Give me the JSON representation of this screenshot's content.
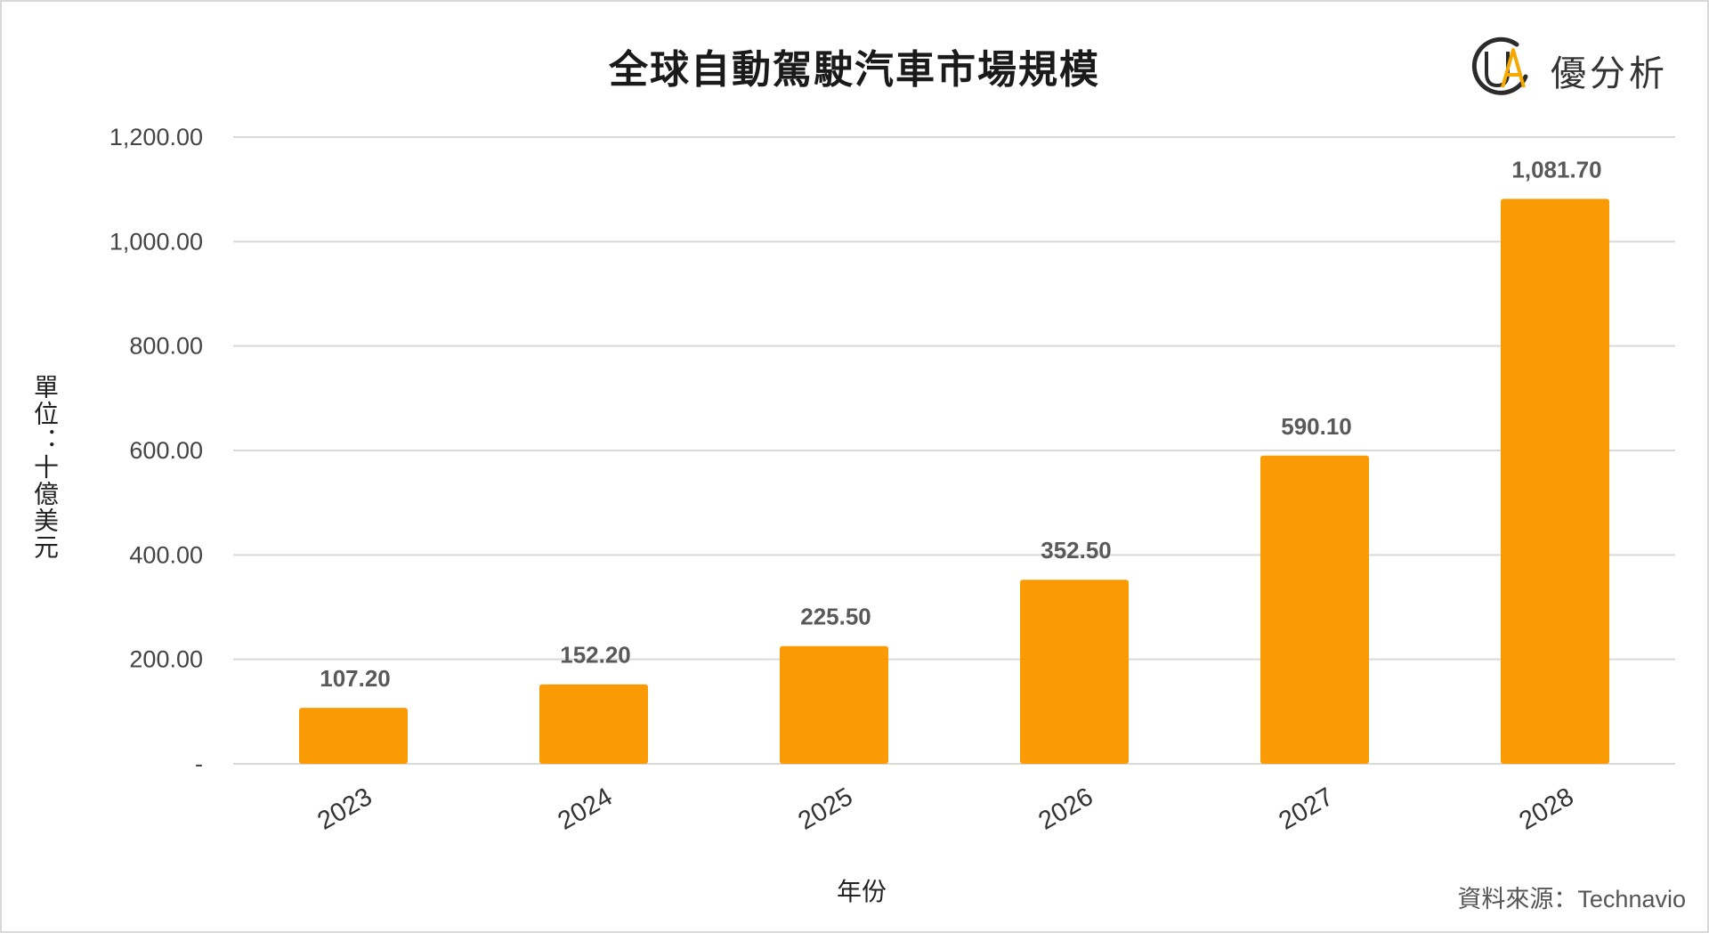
{
  "brand": {
    "logo_text": "UA",
    "name": "優分析"
  },
  "source_note": "資料來源：Technavio",
  "colors": {
    "bar": "#fa9a05",
    "grid": "#d9d9d9",
    "logo_dark": "#2b2b2b",
    "logo_accent": "#f5a800"
  },
  "chart_data": {
    "type": "bar",
    "title": "全球自動駕駛汽車市場規模",
    "xlabel": "年份",
    "ylabel": "單位：十億美元",
    "categories": [
      "2023",
      "2024",
      "2025",
      "2026",
      "2027",
      "2028"
    ],
    "values": [
      107.2,
      152.2,
      225.5,
      352.5,
      590.1,
      1081.7
    ],
    "value_labels": [
      "107.20",
      "152.20",
      "225.50",
      "352.50",
      "590.10",
      "1,081.70"
    ],
    "ylim": [
      0,
      1200
    ],
    "yticks": [
      0,
      200,
      400,
      600,
      800,
      1000,
      1200
    ],
    "ytick_labels": [
      "-",
      "200.00",
      "400.00",
      "600.00",
      "800.00",
      "1,000.00",
      "1,200.00"
    ],
    "grid": true,
    "legend": "none"
  }
}
